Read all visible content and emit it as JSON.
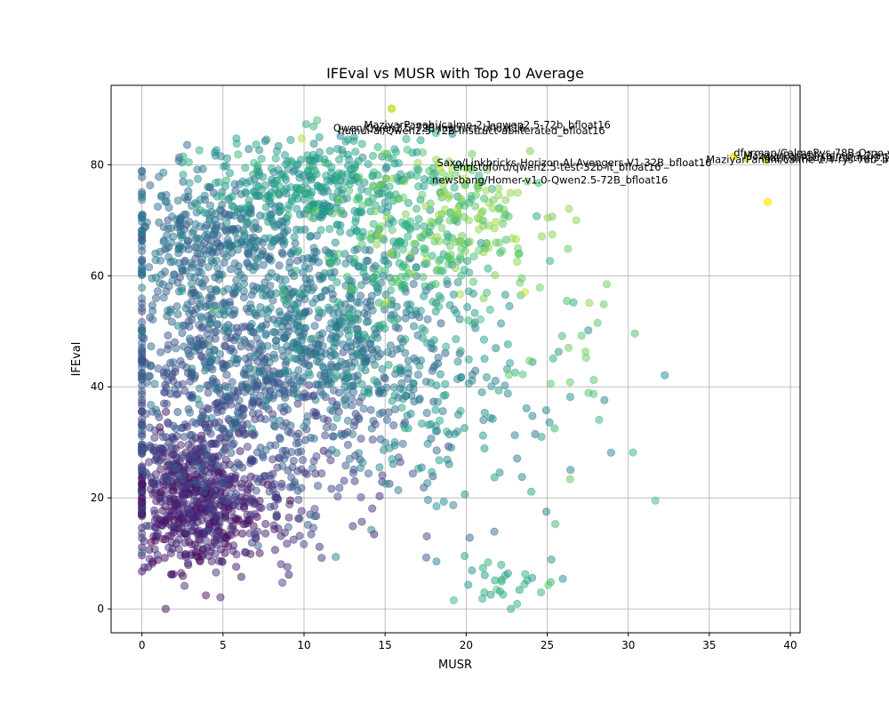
{
  "chart_data": {
    "type": "scatter",
    "title": "IFEval vs MUSR with Top 10 Average",
    "xlabel": "MUSR",
    "ylabel": "IFEval",
    "xlim": [
      -1.9,
      40.6
    ],
    "ylim": [
      -4.3,
      94.3
    ],
    "xticks": [
      0,
      5,
      10,
      15,
      20,
      25,
      30,
      35,
      40
    ],
    "yticks": [
      0,
      20,
      40,
      60,
      80
    ],
    "grid": true,
    "legend": "none",
    "colormap": "viridis",
    "color_encodes": "average score",
    "point_alpha": 0.5,
    "highlighted_points": [
      {
        "x": 36.5,
        "y": 81.5,
        "c": 0.97
      },
      {
        "x": 37.3,
        "y": 81.2,
        "c": 0.96
      },
      {
        "x": 38.5,
        "y": 80.9,
        "c": 0.95
      },
      {
        "x": 38.6,
        "y": 73.3,
        "c": 1.0
      },
      {
        "x": 15.4,
        "y": 90.1,
        "c": 0.9
      }
    ],
    "annotations": [
      {
        "text": "MaziyarPanahi/calme-2.1-qwen2.5-72b_bfloat16",
        "x": 13.7,
        "y": 86.5
      },
      {
        "text": "Qwen/Qwen2.5-72B-Instruct_bfloat16",
        "x": 11.8,
        "y": 86.0
      },
      {
        "text": "huihui-ai/Qwen2.5-72B-Instruct-abliterated_bfloat16",
        "x": 12.1,
        "y": 85.5
      },
      {
        "text": "Saxo/Linkbricks-Horizon-AI-Avengers-V1-32B_bfloat16",
        "x": 18.2,
        "y": 79.7
      },
      {
        "text": "ehristoforu/qwen2.5-test-32b-it_bfloat16",
        "x": 19.2,
        "y": 78.9
      },
      {
        "text": "newsbang/Homer-v1.0-Qwen2.5-72B_bfloat16",
        "x": 17.9,
        "y": 76.6
      },
      {
        "text": "dfurman/CalmeRys-78B-Orpo-v0.1_bfloat16",
        "x": 36.5,
        "y": 81.5
      },
      {
        "text": "MaziyarPanahi/calme-2.4-rys-78b_bfloat16",
        "x": 34.8,
        "y": 80.3
      },
      {
        "text": "MaziyarPanahi/calme-3.2-instruct-78b_bfloat16",
        "x": 37.1,
        "y": 81.0
      },
      {
        "text": "MaziyarPanahi/calme-3.1-instruct-78b_bfloat16",
        "x": 38.2,
        "y": 80.6
      }
    ],
    "clusters": [
      {
        "cx": 2.5,
        "cy": 22,
        "sx": 1.8,
        "sy": 6,
        "n": 380,
        "c": 0.12
      },
      {
        "cx": 4,
        "cy": 17,
        "sx": 2.5,
        "sy": 5,
        "n": 260,
        "c": 0.08
      },
      {
        "cx": 4,
        "cy": 45,
        "sx": 3,
        "sy": 13,
        "n": 420,
        "c": 0.27
      },
      {
        "cx": 4,
        "cy": 68,
        "sx": 3,
        "sy": 5,
        "n": 220,
        "c": 0.36
      },
      {
        "cx": 8,
        "cy": 30,
        "sx": 4,
        "sy": 10,
        "n": 330,
        "c": 0.22
      },
      {
        "cx": 9,
        "cy": 58,
        "sx": 4,
        "sy": 10,
        "n": 300,
        "c": 0.4
      },
      {
        "cx": 11.5,
        "cy": 47,
        "sx": 4,
        "sy": 9,
        "n": 420,
        "c": 0.38
      },
      {
        "cx": 11,
        "cy": 77,
        "sx": 3.5,
        "sy": 4,
        "n": 320,
        "c": 0.55
      },
      {
        "cx": 16,
        "cy": 66,
        "sx": 3.5,
        "sy": 8,
        "n": 200,
        "c": 0.65
      },
      {
        "cx": 20,
        "cy": 70,
        "sx": 3,
        "sy": 7,
        "n": 130,
        "c": 0.8
      },
      {
        "cx": 18,
        "cy": 38,
        "sx": 4,
        "sy": 12,
        "n": 180,
        "c": 0.5
      },
      {
        "cx": 22,
        "cy": 5,
        "sx": 2,
        "sy": 2.5,
        "n": 30,
        "c": 0.6
      },
      {
        "cx": 26,
        "cy": 45,
        "sx": 2.5,
        "sy": 10,
        "n": 30,
        "c": 0.72
      }
    ]
  }
}
